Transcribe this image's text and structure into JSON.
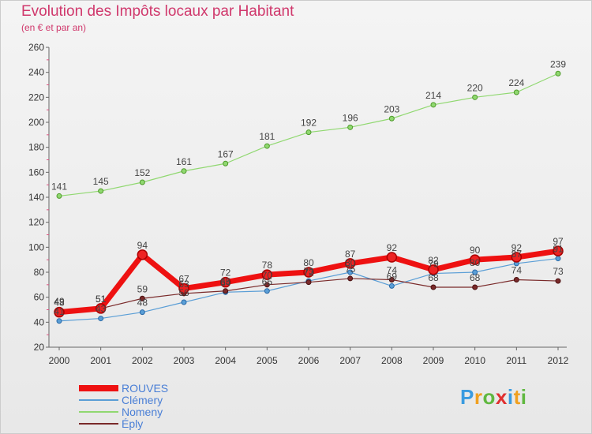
{
  "header": {
    "title": "Evolution des Impôts locaux par Habitant",
    "subtitle": "(en € et par an)"
  },
  "logo": {
    "letters": [
      "P",
      "r",
      "o",
      "x",
      "i",
      "t",
      "i"
    ],
    "colors": [
      "#3a9be0",
      "#f0a020",
      "#60b840",
      "#e03030",
      "#3a9be0",
      "#f0a020",
      "#60b840"
    ]
  },
  "chart_data": {
    "type": "line",
    "title": "Evolution des Impôts locaux par Habitant",
    "subtitle": "(en € et par an)",
    "xlabel": "",
    "ylabel": "",
    "x": [
      2000,
      2001,
      2002,
      2003,
      2004,
      2005,
      2006,
      2007,
      2008,
      2009,
      2010,
      2011,
      2012
    ],
    "ylim": [
      20,
      260
    ],
    "yticks": [
      20,
      40,
      60,
      80,
      100,
      120,
      140,
      160,
      180,
      200,
      220,
      240,
      260
    ],
    "grid": false,
    "legend_position": "bottom-left",
    "series": [
      {
        "name": "ROUVES",
        "color": "#ee1111",
        "values": [
          48,
          51,
          94,
          67,
          72,
          78,
          80,
          87,
          92,
          82,
          90,
          92,
          97
        ]
      },
      {
        "name": "Clémery",
        "color": "#5a9ed6",
        "values": [
          41,
          43,
          48,
          56,
          64,
          65,
          73,
          80,
          69,
          79,
          80,
          87,
          91
        ]
      },
      {
        "name": "Nomeny",
        "color": "#90d870",
        "values": [
          141,
          145,
          152,
          161,
          167,
          181,
          192,
          196,
          203,
          214,
          220,
          224,
          239
        ]
      },
      {
        "name": "Éply",
        "color": "#7a2a2a",
        "values": [
          49,
          51,
          59,
          63,
          65,
          70,
          72,
          75,
          74,
          68,
          68,
          74,
          73
        ]
      }
    ]
  }
}
